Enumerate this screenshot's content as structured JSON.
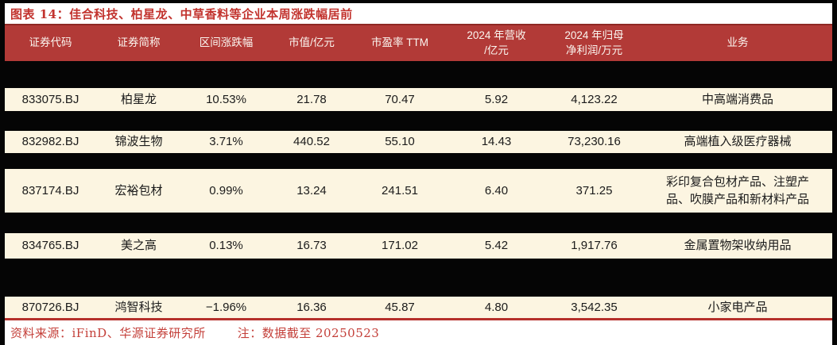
{
  "title": "图表 14：佳合科技、柏星龙、中草香料等企业本周涨跌幅居前",
  "colors": {
    "page_bg": "#050505",
    "header_bg": "#B23A37",
    "header_border": "#8E2823",
    "row_bg": "#FCF5E1",
    "accent_red": "#C2332E",
    "line_red": "#B5302B",
    "footer_red": "#C4403A"
  },
  "table": {
    "headers": [
      "证券代码",
      "证券简称",
      "区间涨跌幅",
      "市值/亿元",
      "市盈率 TTM",
      "2024 年营收\n/亿元",
      "2024 年归母\n净利润/万元",
      "业务"
    ],
    "rows": [
      {
        "code": "833075.BJ",
        "name": "柏星龙",
        "change": "10.53%",
        "market_cap": "21.78",
        "pe_ttm": "70.47",
        "revenue_2024": "5.92",
        "net_profit_2024": "4,123.22",
        "business": "中高端消费品"
      },
      {
        "code": "832982.BJ",
        "name": "锦波生物",
        "change": "3.71%",
        "market_cap": "440.52",
        "pe_ttm": "55.10",
        "revenue_2024": "14.43",
        "net_profit_2024": "73,230.16",
        "business": "高端植入级医疗器械"
      },
      {
        "code": "837174.BJ",
        "name": "宏裕包材",
        "change": "0.99%",
        "market_cap": "13.24",
        "pe_ttm": "241.51",
        "revenue_2024": "6.40",
        "net_profit_2024": "371.25",
        "business": "彩印复合包材产品、注塑产品、吹膜产品和新材料产品"
      },
      {
        "code": "834765.BJ",
        "name": "美之高",
        "change": "0.13%",
        "market_cap": "16.73",
        "pe_ttm": "171.02",
        "revenue_2024": "5.42",
        "net_profit_2024": "1,917.76",
        "business": "金属置物架收纳用品"
      },
      {
        "code": "870726.BJ",
        "name": "鸿智科技",
        "change": "−1.96%",
        "market_cap": "16.36",
        "pe_ttm": "45.87",
        "revenue_2024": "4.80",
        "net_profit_2024": "3,542.35",
        "business": "小家电产品"
      }
    ]
  },
  "footer": {
    "source": "资料来源：iFinD、华源证券研究所",
    "note": "注：数据截至 20250523"
  }
}
